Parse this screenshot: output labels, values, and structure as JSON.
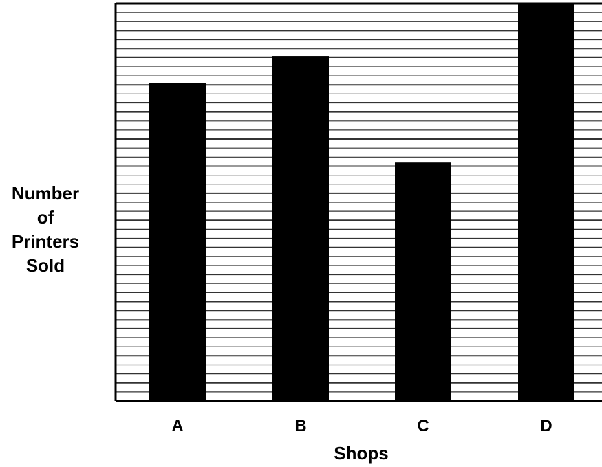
{
  "chart_data": {
    "type": "bar",
    "title": "",
    "xlabel": "Shops",
    "ylabel_lines": [
      "Number",
      "of",
      "Printers",
      "Sold"
    ],
    "categories": [
      "A",
      "B",
      "C",
      "D"
    ],
    "values": [
      12,
      13,
      9,
      15
    ],
    "ylim": [
      0,
      15
    ],
    "grid": true,
    "bar_color": "#000000",
    "grid_color": "#333333",
    "background_color": "#ffffff"
  }
}
